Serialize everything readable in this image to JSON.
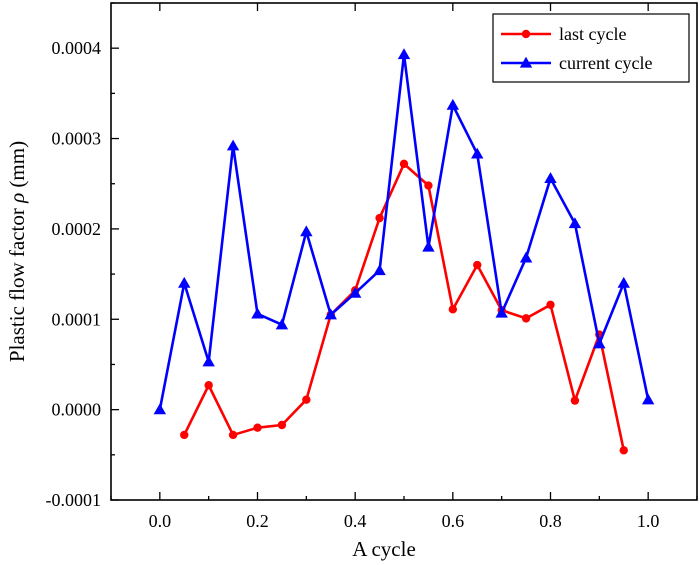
{
  "chart_data": {
    "type": "line",
    "xlabel": "A cycle",
    "ylabel_prefix": "Plastic flow factor ",
    "ylabel_symbol": "ρ",
    "ylabel_suffix": " (mm)",
    "xlim": [
      -0.1,
      1.1
    ],
    "ylim": [
      -0.0001,
      0.00045
    ],
    "xticks": [
      0.0,
      0.2,
      0.4,
      0.6,
      0.8,
      1.0
    ],
    "xtick_labels": [
      "0.0",
      "0.2",
      "0.4",
      "0.6",
      "0.8",
      "1.0"
    ],
    "yticks": [
      -0.0001,
      0.0,
      0.0001,
      0.0002,
      0.0003,
      0.0004
    ],
    "ytick_labels": [
      "-0.0001",
      "0.0000",
      "0.0001",
      "0.0002",
      "0.0003",
      "0.0004"
    ],
    "grid": false,
    "legend_position": "top-right",
    "series": [
      {
        "name": "last cycle",
        "color": "#ff0000",
        "marker": "circle",
        "x": [
          0.05,
          0.1,
          0.15,
          0.2,
          0.25,
          0.3,
          0.35,
          0.4,
          0.45,
          0.5,
          0.55,
          0.6,
          0.65,
          0.7,
          0.75,
          0.8,
          0.85,
          0.9,
          0.95
        ],
        "y": [
          -2.8e-05,
          2.7e-05,
          -2.8e-05,
          -2e-05,
          -1.7e-05,
          1.1e-05,
          0.000105,
          0.000132,
          0.000212,
          0.000272,
          0.000248,
          0.000111,
          0.00016,
          0.00011,
          0.000101,
          0.000116,
          1e-05,
          8.3e-05,
          -4.5e-05
        ]
      },
      {
        "name": "current cycle",
        "color": "#0000ff",
        "marker": "triangle",
        "x": [
          0.0,
          0.05,
          0.1,
          0.15,
          0.2,
          0.25,
          0.3,
          0.35,
          0.4,
          0.45,
          0.5,
          0.55,
          0.6,
          0.65,
          0.7,
          0.75,
          0.8,
          0.85,
          0.9,
          0.95,
          1.0
        ],
        "y": [
          0.0,
          0.00014,
          5.3e-05,
          0.000292,
          0.000106,
          9.4e-05,
          0.000197,
          0.000105,
          0.000129,
          0.000154,
          0.000393,
          0.00018,
          0.000337,
          0.000283,
          0.000107,
          0.000168,
          0.000256,
          0.000206,
          7.3e-05,
          0.00014,
          1.1e-05
        ]
      }
    ]
  }
}
